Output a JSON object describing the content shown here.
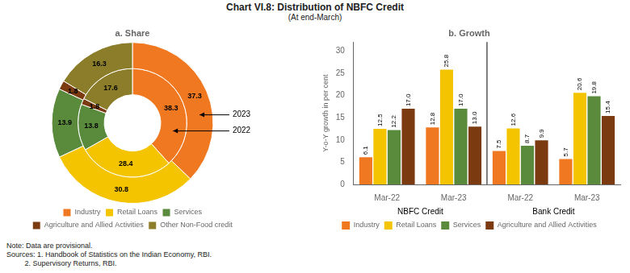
{
  "title": "Chart VI.8: Distribution of NBFC Credit",
  "subtitle": "(At end-March)",
  "annotations": [
    "Note: Data are provisional.",
    "Sources: 1. Handbook of Statistics on the Indian Economy, RBI.",
    "         2. Supervisory Returns, RBI."
  ],
  "chart_data": [
    {
      "type": "doughnut",
      "title": "a. Share",
      "categories": [
        "Industry",
        "Retail Loans",
        "Services",
        "Agriculture and Allied Activities",
        "Other Non-Food credit"
      ],
      "colors": [
        "#f07820",
        "#f5c400",
        "#5a8a3c",
        "#7b3a10",
        "#8b7d2a"
      ],
      "series": [
        {
          "name": "2023",
          "values": [
            37.3,
            30.8,
            13.9,
            1.8,
            16.3
          ]
        },
        {
          "name": "2022",
          "values": [
            38.3,
            28.4,
            13.8,
            1.8,
            17.6
          ]
        }
      ],
      "data_labels": true,
      "legend": "bottom"
    },
    {
      "type": "bar",
      "title": "b. Growth",
      "ylabel": "Y-o-Y growth in per cent",
      "categories": [
        "Mar-22",
        "Mar-23",
        "Mar-22",
        "Mar-23"
      ],
      "annotations": [
        "NBFC Credit",
        "Bank Credit"
      ],
      "series": [
        {
          "name": "Industry",
          "color": "#f07820",
          "values": [
            6.1,
            12.8,
            7.5,
            5.7
          ],
          "value_labels": [
            "6.1",
            "12.8",
            "7.5",
            "5.7"
          ]
        },
        {
          "name": "Retail Loans",
          "color": "#f5c400",
          "values": [
            12.5,
            25.8,
            12.6,
            20.6
          ],
          "value_labels": [
            "12.5",
            "25.8",
            "12.6",
            "20.6"
          ]
        },
        {
          "name": "Services",
          "color": "#5a8a3c",
          "values": [
            12.2,
            17.0,
            8.7,
            19.8
          ],
          "value_labels": [
            "12.2",
            "17.0",
            "8.7",
            "19.8"
          ]
        },
        {
          "name": "Agriculture and Allied Activities",
          "color": "#7b3a10",
          "values": [
            17.0,
            13.0,
            9.9,
            15.4
          ],
          "value_labels": [
            "17.0",
            "13.0",
            "9.9",
            "15.4"
          ]
        }
      ],
      "ylim": [
        0,
        32
      ],
      "yticks": [
        0,
        5,
        10,
        15,
        20,
        25,
        30
      ],
      "grid": false,
      "data_labels": true,
      "legend": "bottom"
    }
  ]
}
